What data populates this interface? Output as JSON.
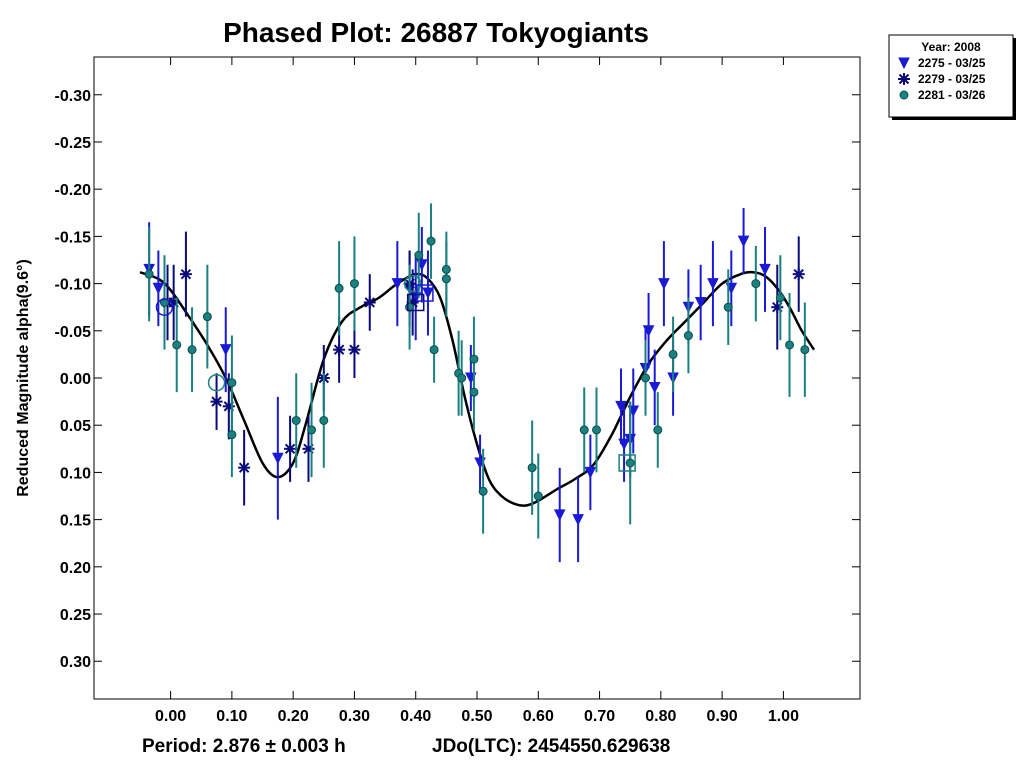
{
  "chart_data": {
    "type": "scatter",
    "title": "Phased Plot: 26887 Tokyogiants",
    "ylabel": "Reduced Magnitude alpha(9.6°)",
    "xlabel": "",
    "xlim": [
      -0.125,
      1.125
    ],
    "ylim": [
      0.34,
      -0.34
    ],
    "y_inverted": true,
    "x_ticks": [
      0.0,
      0.1,
      0.2,
      0.3,
      0.4,
      0.5,
      0.6,
      0.7,
      0.8,
      0.9,
      1.0
    ],
    "x_tick_labels": [
      "0.00",
      "0.10",
      "0.20",
      "0.30",
      "0.40",
      "0.50",
      "0.60",
      "0.70",
      "0.80",
      "0.90",
      "1.00"
    ],
    "y_ticks": [
      -0.3,
      -0.25,
      -0.2,
      -0.15,
      -0.1,
      -0.05,
      0.0,
      0.05,
      0.1,
      0.15,
      0.2,
      0.25,
      0.3
    ],
    "y_tick_labels": [
      "-0.30",
      "-0.25",
      "-0.20",
      "-0.15",
      "-0.10",
      "-0.05",
      "0.00",
      "0.05",
      "0.10",
      "0.15",
      "0.20",
      "0.25",
      "0.30"
    ],
    "footer_period": "Period: 2.876 ± 0.003 h",
    "footer_epoch": "JDo(LTC): 2454550.629638",
    "legend": {
      "title": "Year: 2008",
      "position": "top-right-outside",
      "entries": [
        {
          "label": "2275 - 03/25",
          "marker": "triangle-down",
          "color": "#1a1ad4"
        },
        {
          "label": "2279 - 03/25",
          "marker": "asterisk",
          "color": "#0a0a7a"
        },
        {
          "label": "2281 - 03/26",
          "marker": "circle",
          "color": "#1a8080"
        }
      ]
    },
    "series": [
      {
        "name": "2275 - 03/25",
        "marker": "triangle-down",
        "color": "#1a1ad4",
        "points": [
          [
            -0.035,
            -0.115,
            0.05
          ],
          [
            -0.02,
            -0.095,
            0.04
          ],
          [
            0.09,
            -0.03,
            0.045
          ],
          [
            0.175,
            0.085,
            0.065
          ],
          [
            0.37,
            -0.1,
            0.045
          ],
          [
            0.39,
            -0.095,
            0.04
          ],
          [
            0.4,
            -0.085,
            0.045
          ],
          [
            0.41,
            -0.12,
            0.04
          ],
          [
            0.42,
            -0.09,
            0.045
          ],
          [
            0.49,
            0.0,
            0.035
          ],
          [
            0.505,
            0.09,
            0.03
          ],
          [
            0.635,
            0.145,
            0.05
          ],
          [
            0.665,
            0.15,
            0.045
          ],
          [
            0.685,
            0.1,
            0.04
          ],
          [
            0.735,
            0.03,
            0.04
          ],
          [
            0.74,
            0.07,
            0.04
          ],
          [
            0.75,
            0.065,
            0.04
          ],
          [
            0.755,
            0.035,
            0.045
          ],
          [
            0.775,
            -0.01,
            0.045
          ],
          [
            0.78,
            -0.05,
            0.04
          ],
          [
            0.79,
            0.01,
            0.04
          ],
          [
            0.805,
            -0.1,
            0.045
          ],
          [
            0.82,
            0.0,
            0.04
          ],
          [
            0.845,
            -0.075,
            0.04
          ],
          [
            0.865,
            -0.08,
            0.04
          ],
          [
            0.885,
            -0.1,
            0.045
          ],
          [
            0.915,
            -0.095,
            0.04
          ],
          [
            0.935,
            -0.145,
            0.035
          ],
          [
            0.97,
            -0.115,
            0.045
          ]
        ]
      },
      {
        "name": "2279 - 03/25",
        "marker": "asterisk",
        "color": "#0a0a7a",
        "points": [
          [
            -0.005,
            -0.08,
            0.04
          ],
          [
            0.005,
            -0.08,
            0.04
          ],
          [
            0.025,
            -0.11,
            0.045
          ],
          [
            0.075,
            0.025,
            0.03
          ],
          [
            0.095,
            0.03,
            0.035
          ],
          [
            0.12,
            0.095,
            0.04
          ],
          [
            0.195,
            0.075,
            0.035
          ],
          [
            0.225,
            0.075,
            0.035
          ],
          [
            0.25,
            0.0,
            0.035
          ],
          [
            0.275,
            -0.03,
            0.035
          ],
          [
            0.3,
            -0.03,
            0.03
          ],
          [
            0.325,
            -0.08,
            0.03
          ],
          [
            0.39,
            -0.1,
            0.035
          ],
          [
            0.395,
            -0.08,
            0.035
          ],
          [
            0.99,
            -0.075,
            0.045
          ],
          [
            1.025,
            -0.11,
            0.04
          ]
        ]
      },
      {
        "name": "2281 - 03/26",
        "marker": "circle",
        "color": "#1a8080",
        "points": [
          [
            -0.035,
            -0.11,
            0.05
          ],
          [
            -0.01,
            -0.08,
            0.05
          ],
          [
            0.01,
            -0.035,
            0.05
          ],
          [
            0.035,
            -0.03,
            0.045
          ],
          [
            0.06,
            -0.065,
            0.055
          ],
          [
            0.1,
            0.06,
            0.045
          ],
          [
            0.1,
            0.005,
            0.05
          ],
          [
            0.205,
            0.045,
            0.05
          ],
          [
            0.23,
            0.055,
            0.05
          ],
          [
            0.25,
            0.045,
            0.05
          ],
          [
            0.275,
            -0.095,
            0.05
          ],
          [
            0.3,
            -0.1,
            0.05
          ],
          [
            0.39,
            -0.075,
            0.045
          ],
          [
            0.405,
            -0.13,
            0.045
          ],
          [
            0.425,
            -0.145,
            0.04
          ],
          [
            0.43,
            -0.03,
            0.035
          ],
          [
            0.45,
            -0.115,
            0.04
          ],
          [
            0.45,
            -0.105,
            0.04
          ],
          [
            0.47,
            -0.005,
            0.045
          ],
          [
            0.475,
            0.0,
            0.04
          ],
          [
            0.495,
            -0.02,
            0.045
          ],
          [
            0.495,
            0.015,
            0.04
          ],
          [
            0.51,
            0.12,
            0.045
          ],
          [
            0.59,
            0.095,
            0.05
          ],
          [
            0.6,
            0.125,
            0.045
          ],
          [
            0.675,
            0.055,
            0.045
          ],
          [
            0.695,
            0.055,
            0.045
          ],
          [
            0.75,
            0.09,
            0.065
          ],
          [
            0.775,
            0.0,
            0.04
          ],
          [
            0.795,
            0.055,
            0.04
          ],
          [
            0.82,
            -0.025,
            0.04
          ],
          [
            0.845,
            -0.045,
            0.04
          ],
          [
            0.91,
            -0.075,
            0.04
          ],
          [
            0.955,
            -0.1,
            0.04
          ],
          [
            0.995,
            -0.085,
            0.045
          ],
          [
            1.01,
            -0.035,
            0.055
          ],
          [
            1.035,
            -0.03,
            0.05
          ]
        ]
      }
    ],
    "highlight_markers": [
      {
        "marker": "circle-outline",
        "color": "#1a1ad4",
        "x": -0.01,
        "y": -0.075
      },
      {
        "marker": "circle-outline",
        "color": "#1a8080",
        "x": 0.075,
        "y": 0.005
      },
      {
        "marker": "circle-outline",
        "color": "#1a8080",
        "x": 0.395,
        "y": -0.1
      },
      {
        "marker": "square-outline",
        "color": "#0a0a7a",
        "x": 0.4,
        "y": -0.08
      },
      {
        "marker": "square-outline",
        "color": "#1a1ad4",
        "x": 0.415,
        "y": -0.09
      },
      {
        "marker": "square-outline",
        "color": "#1a8080",
        "x": 0.745,
        "y": 0.09
      }
    ],
    "fit_curve": {
      "color": "#000000",
      "x": [
        -0.05,
        -0.02,
        0.0,
        0.03,
        0.06,
        0.09,
        0.12,
        0.15,
        0.175,
        0.2,
        0.22,
        0.25,
        0.28,
        0.31,
        0.34,
        0.37,
        0.4,
        0.42,
        0.44,
        0.46,
        0.48,
        0.5,
        0.52,
        0.54,
        0.56,
        0.58,
        0.6,
        0.63,
        0.66,
        0.69,
        0.72,
        0.75,
        0.78,
        0.81,
        0.84,
        0.87,
        0.9,
        0.93,
        0.95,
        0.97,
        0.99,
        1.01,
        1.03,
        1.05
      ],
      "y": [
        -0.112,
        -0.105,
        -0.093,
        -0.065,
        -0.035,
        0.0,
        0.045,
        0.09,
        0.105,
        0.09,
        0.05,
        -0.02,
        -0.06,
        -0.075,
        -0.085,
        -0.1,
        -0.11,
        -0.105,
        -0.085,
        -0.04,
        0.02,
        0.07,
        0.108,
        0.125,
        0.133,
        0.135,
        0.13,
        0.118,
        0.107,
        0.092,
        0.06,
        0.02,
        -0.015,
        -0.04,
        -0.06,
        -0.08,
        -0.1,
        -0.11,
        -0.112,
        -0.108,
        -0.095,
        -0.075,
        -0.05,
        -0.03
      ]
    }
  }
}
